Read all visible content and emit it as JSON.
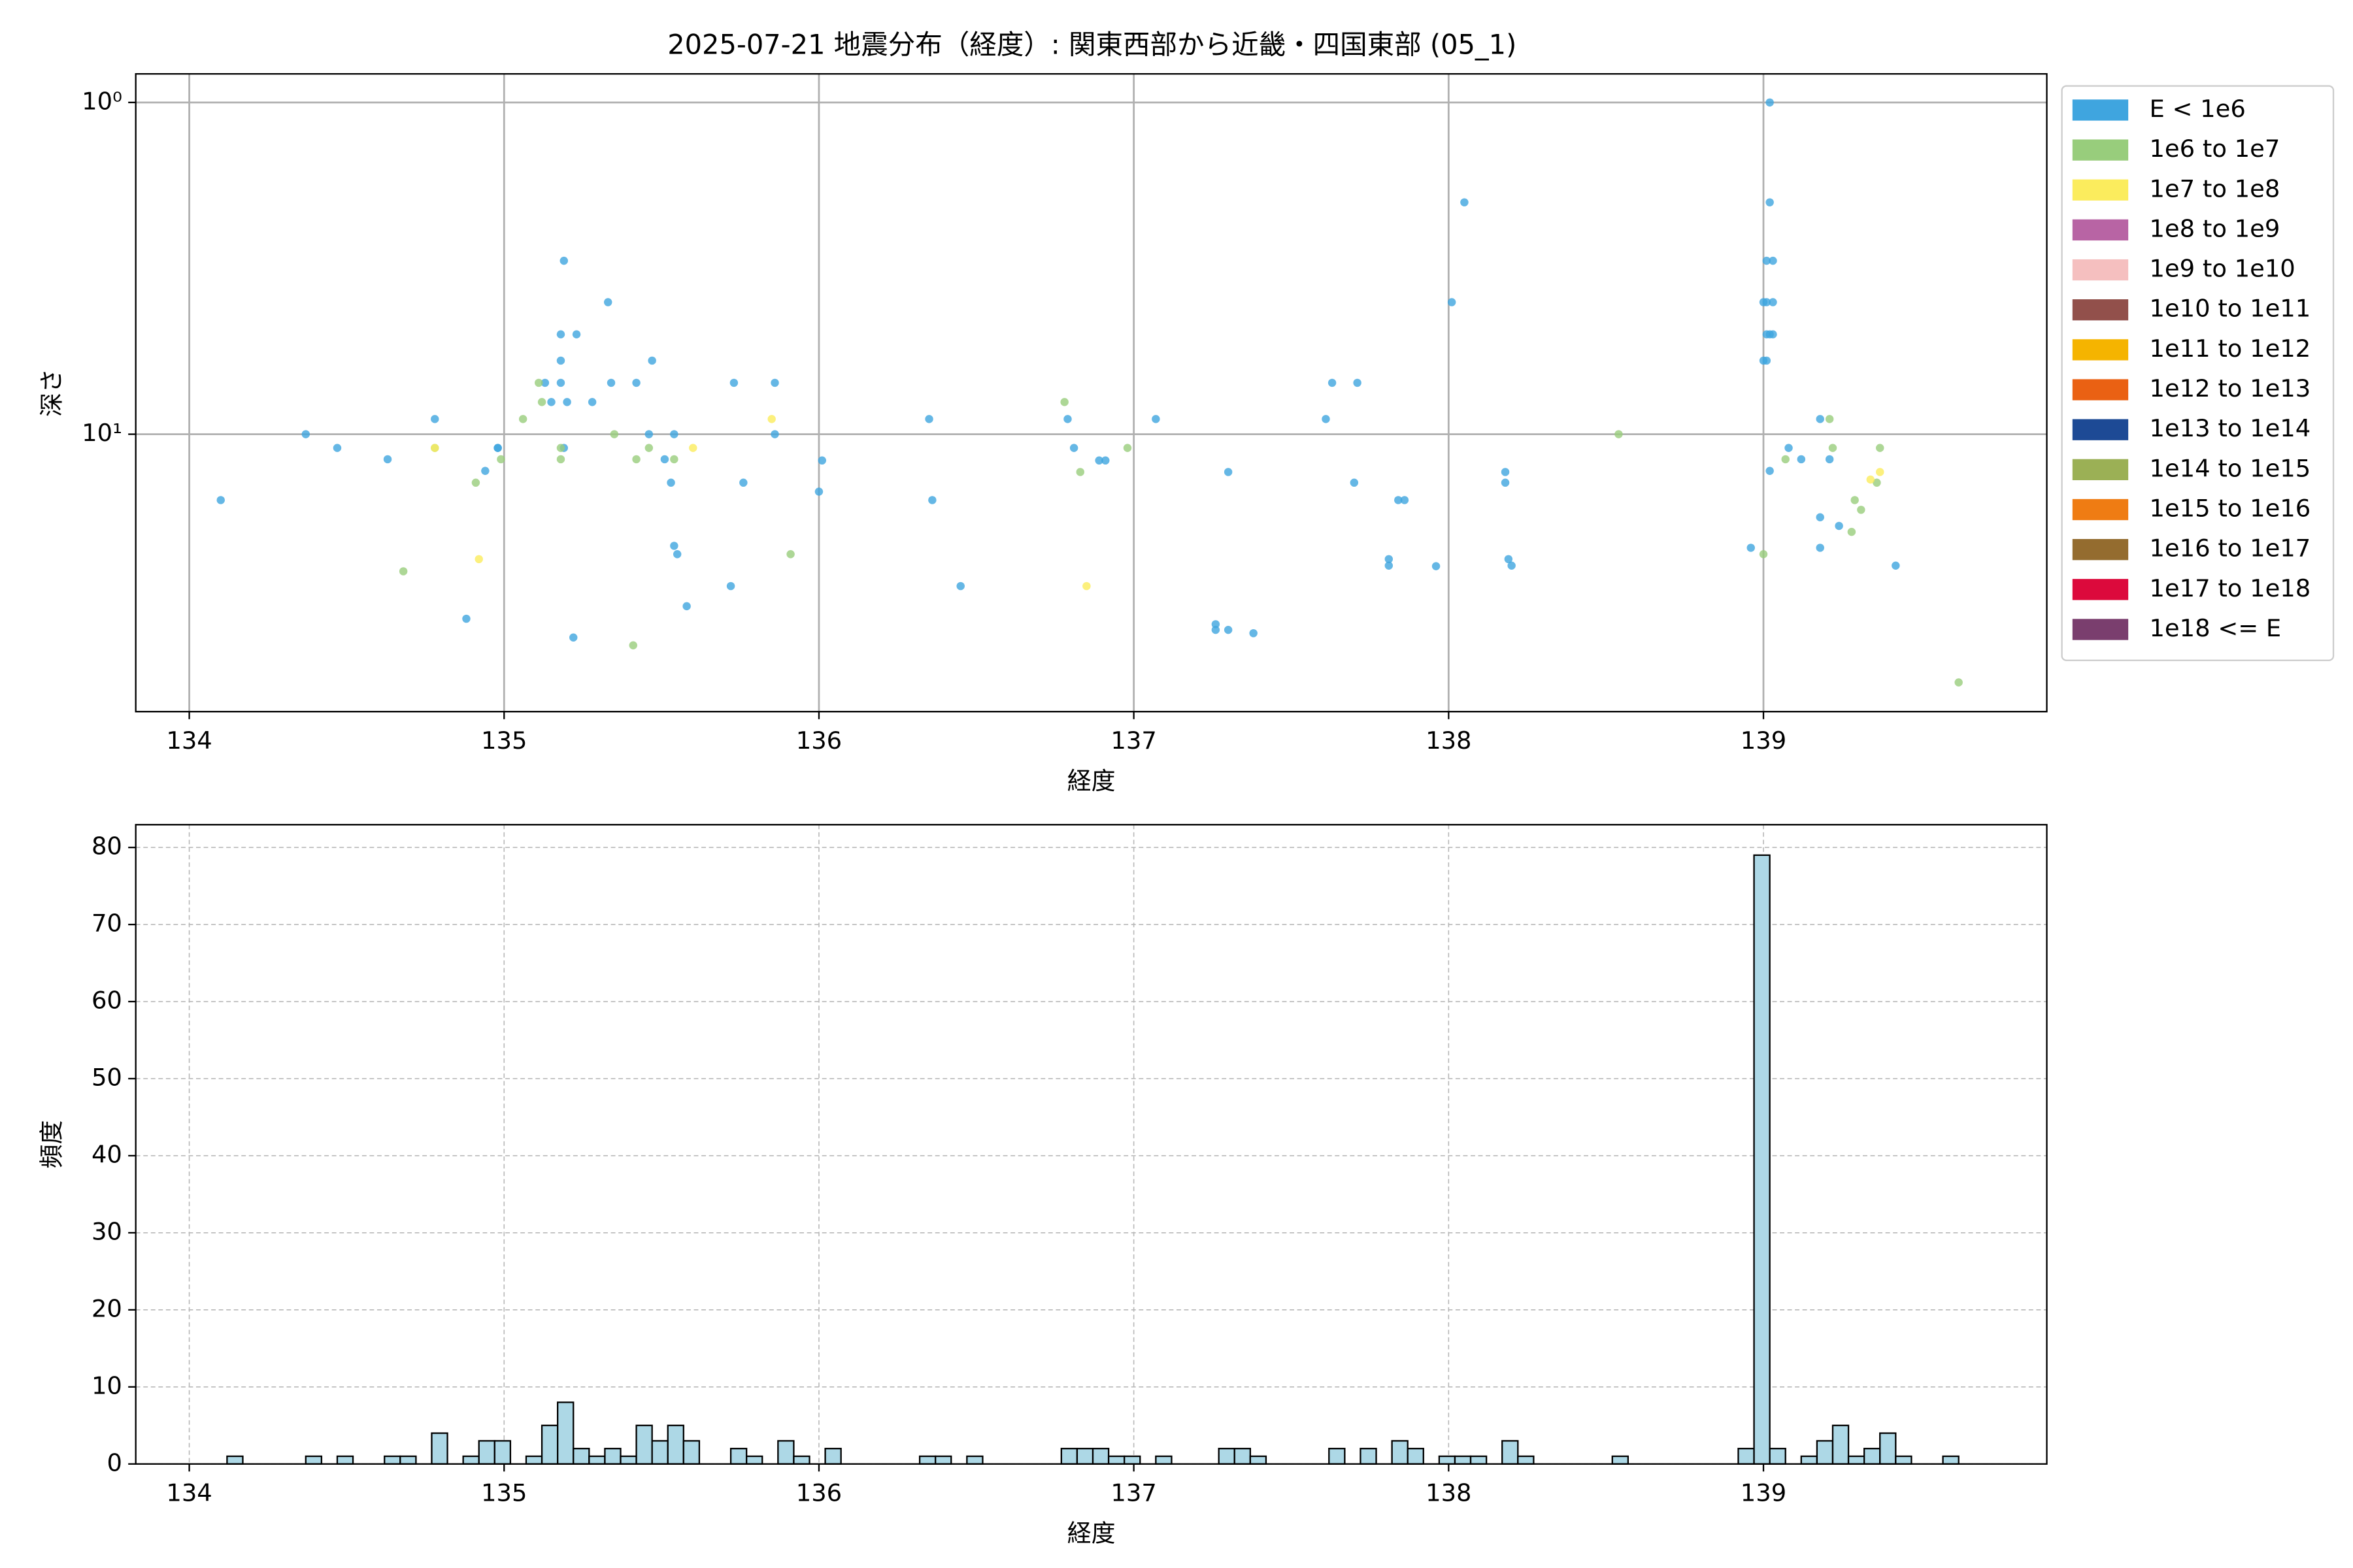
{
  "chart_data": [
    {
      "type": "scatter",
      "title": "2025-07-21 地震分布（経度）: 関東西部から近畿・四国東部 (05_1)",
      "xlabel": "経度",
      "ylabel": "深さ",
      "xlim": [
        133.83,
        139.9
      ],
      "xticks": [
        134,
        135,
        136,
        137,
        138,
        139
      ],
      "ylim": [
        0.82,
        68.6
      ],
      "yscale": "log",
      "y_inverted": true,
      "yticks": [
        {
          "value": 1,
          "label": "10⁰"
        },
        {
          "value": 10,
          "label": "10¹"
        }
      ],
      "grid": true,
      "legend": "right",
      "series": [
        {
          "name": "E < 1e6",
          "color": "#3fa5df",
          "x": [
            134.1,
            134.37,
            134.47,
            134.63,
            134.78,
            134.88,
            134.94,
            134.98,
            134.98,
            135.13,
            135.15,
            135.18,
            135.18,
            135.18,
            135.19,
            135.19,
            135.2,
            135.22,
            135.23,
            135.28,
            135.33,
            135.34,
            135.42,
            135.46,
            135.47,
            135.51,
            135.53,
            135.54,
            135.54,
            135.55,
            135.58,
            135.72,
            135.73,
            135.76,
            135.86,
            135.86,
            136.01,
            136.0,
            136.35,
            136.36,
            136.45,
            136.79,
            136.81,
            136.89,
            136.91,
            137.07,
            137.26,
            137.26,
            137.3,
            137.38,
            137.3,
            137.61,
            137.63,
            137.7,
            137.71,
            137.81,
            137.81,
            137.84,
            137.86,
            137.96,
            138.01,
            138.05,
            138.18,
            138.18,
            138.19,
            138.2,
            138.96,
            139.0,
            139.0,
            139.01,
            139.01,
            139.01,
            139.01,
            139.02,
            139.02,
            139.02,
            139.02,
            139.03,
            139.03,
            139.03,
            139.08,
            139.12,
            139.18,
            139.18,
            139.18,
            139.21,
            139.24,
            139.42
          ],
          "values": [
            15.8,
            10,
            11,
            11.9,
            9,
            36,
            12.9,
            11,
            11,
            7,
            8,
            5,
            6,
            7,
            3.0,
            11,
            8,
            41,
            5,
            8,
            4,
            7,
            7,
            10,
            6,
            11.9,
            14,
            10,
            21.7,
            23,
            33,
            28.7,
            7,
            14,
            7,
            10,
            12,
            14.9,
            9,
            15.8,
            28.7,
            9,
            11,
            12,
            12,
            9,
            37.4,
            38.9,
            38.9,
            39.8,
            13,
            9,
            7,
            14,
            7,
            23.8,
            24.9,
            15.8,
            15.8,
            25,
            4,
            2,
            13,
            14,
            23.8,
            24.9,
            22,
            4,
            6,
            5,
            3,
            6,
            4,
            5,
            2,
            1,
            12.9,
            3,
            4,
            5,
            11,
            11.9,
            9,
            17.8,
            22,
            11.9,
            18.9,
            24.9
          ]
        },
        {
          "name": "1e6 to 1e7",
          "color": "#98cd7c",
          "x": [
            134.78,
            134.68,
            134.91,
            134.99,
            135.06,
            135.11,
            135.12,
            135.18,
            135.18,
            135.35,
            135.42,
            135.41,
            135.46,
            135.54,
            135.91,
            136.78,
            136.83,
            136.98,
            138.54,
            139.0,
            139.07,
            139.21,
            139.22,
            139.28,
            139.29,
            139.31,
            139.36,
            139.37,
            139.62
          ],
          "values": [
            11,
            25.9,
            14,
            11.9,
            9,
            7,
            8,
            11,
            11.9,
            10,
            11.9,
            43.3,
            11,
            11.9,
            23,
            8,
            13,
            11,
            10,
            23,
            11.9,
            9,
            11,
            19.7,
            15.8,
            16.9,
            14,
            11,
            56
          ]
        },
        {
          "name": "1e7 to 1e8",
          "color": "#fbec5d",
          "x": [
            134.78,
            134.92,
            135.6,
            135.85,
            136.85,
            139.34,
            139.37
          ],
          "values": [
            11,
            23.8,
            11,
            9,
            28.7,
            13.7,
            13
          ]
        },
        {
          "name": "1e8 to 1e9",
          "color": "#b864a4",
          "x": [],
          "values": []
        },
        {
          "name": "1e9 to 1e10",
          "color": "#f5bfbf",
          "x": [],
          "values": []
        },
        {
          "name": "1e10 to 1e11",
          "color": "#92504b",
          "x": [],
          "values": []
        },
        {
          "name": "1e11 to 1e12",
          "color": "#f5b400",
          "x": [],
          "values": []
        },
        {
          "name": "1e12 to 1e13",
          "color": "#ea6113",
          "x": [],
          "values": []
        },
        {
          "name": "1e13 to 1e14",
          "color": "#1d4a95",
          "x": [],
          "values": []
        },
        {
          "name": "1e14 to 1e15",
          "color": "#9bb055",
          "x": [],
          "values": []
        },
        {
          "name": "1e15 to 1e16",
          "color": "#ef7c13",
          "x": [],
          "values": []
        },
        {
          "name": "1e16 to 1e17",
          "color": "#946c2f",
          "x": [],
          "values": []
        },
        {
          "name": "1e17 to 1e18",
          "color": "#dc0a3c",
          "x": [],
          "values": []
        },
        {
          "name": "1e18 <= E",
          "color": "#7a3e6e",
          "x": [],
          "values": []
        }
      ]
    },
    {
      "type": "histogram",
      "xlabel": "経度",
      "ylabel": "頻度",
      "xlim": [
        133.83,
        139.9
      ],
      "xticks": [
        134,
        135,
        136,
        137,
        138,
        139
      ],
      "ylim": [
        0,
        82.95
      ],
      "yticks": [
        0,
        10,
        20,
        30,
        40,
        50,
        60,
        70,
        80
      ],
      "grid": true,
      "grid_style": "dashed",
      "color": "#add8e6",
      "edgecolor": "#000000",
      "bins": [
        134.12,
        134.17,
        134.22,
        134.27,
        134.32,
        134.37,
        134.42,
        134.47,
        134.52,
        134.57,
        134.62,
        134.67,
        134.72,
        134.77,
        134.82,
        134.87,
        134.92,
        134.97,
        135.02,
        135.07,
        135.12,
        135.17,
        135.22,
        135.27,
        135.32,
        135.37,
        135.42,
        135.47,
        135.52,
        135.57,
        135.62,
        135.67,
        135.72,
        135.77,
        135.82,
        135.87,
        135.92,
        135.97,
        136.02,
        136.07,
        136.12,
        136.17,
        136.22,
        136.27,
        136.32,
        136.37,
        136.42,
        136.47,
        136.52,
        136.57,
        136.62,
        136.67,
        136.72,
        136.77,
        136.82,
        136.87,
        136.92,
        136.97,
        137.02,
        137.07,
        137.12,
        137.17,
        137.22,
        137.27,
        137.32,
        137.37,
        137.42,
        137.47,
        137.52,
        137.57,
        137.62,
        137.67,
        137.72,
        137.77,
        137.82,
        137.87,
        137.92,
        137.97,
        138.02,
        138.07,
        138.12,
        138.17,
        138.22,
        138.27,
        138.32,
        138.37,
        138.42,
        138.47,
        138.52,
        138.57,
        138.62,
        138.67,
        138.72,
        138.77,
        138.82,
        138.87,
        138.92,
        138.97,
        139.02,
        139.07,
        139.12,
        139.17,
        139.22,
        139.27,
        139.32,
        139.37,
        139.42,
        139.47,
        139.52,
        139.57,
        139.62
      ],
      "values": [
        1,
        0,
        0,
        0,
        0,
        1,
        0,
        1,
        0,
        0,
        1,
        1,
        0,
        4,
        0,
        1,
        3,
        3,
        0,
        1,
        5,
        8,
        2,
        1,
        2,
        1,
        5,
        3,
        5,
        3,
        0,
        0,
        2,
        1,
        0,
        3,
        1,
        0,
        2,
        0,
        0,
        0,
        0,
        0,
        1,
        1,
        0,
        1,
        0,
        0,
        0,
        0,
        0,
        2,
        2,
        2,
        1,
        1,
        0,
        1,
        0,
        0,
        0,
        2,
        2,
        1,
        0,
        0,
        0,
        0,
        2,
        0,
        2,
        0,
        3,
        2,
        0,
        1,
        1,
        1,
        0,
        3,
        1,
        0,
        0,
        0,
        0,
        0,
        1,
        0,
        0,
        0,
        0,
        0,
        0,
        0,
        2,
        79,
        2,
        0,
        1,
        3,
        5,
        1,
        2,
        4,
        1,
        0,
        0,
        1
      ]
    }
  ]
}
